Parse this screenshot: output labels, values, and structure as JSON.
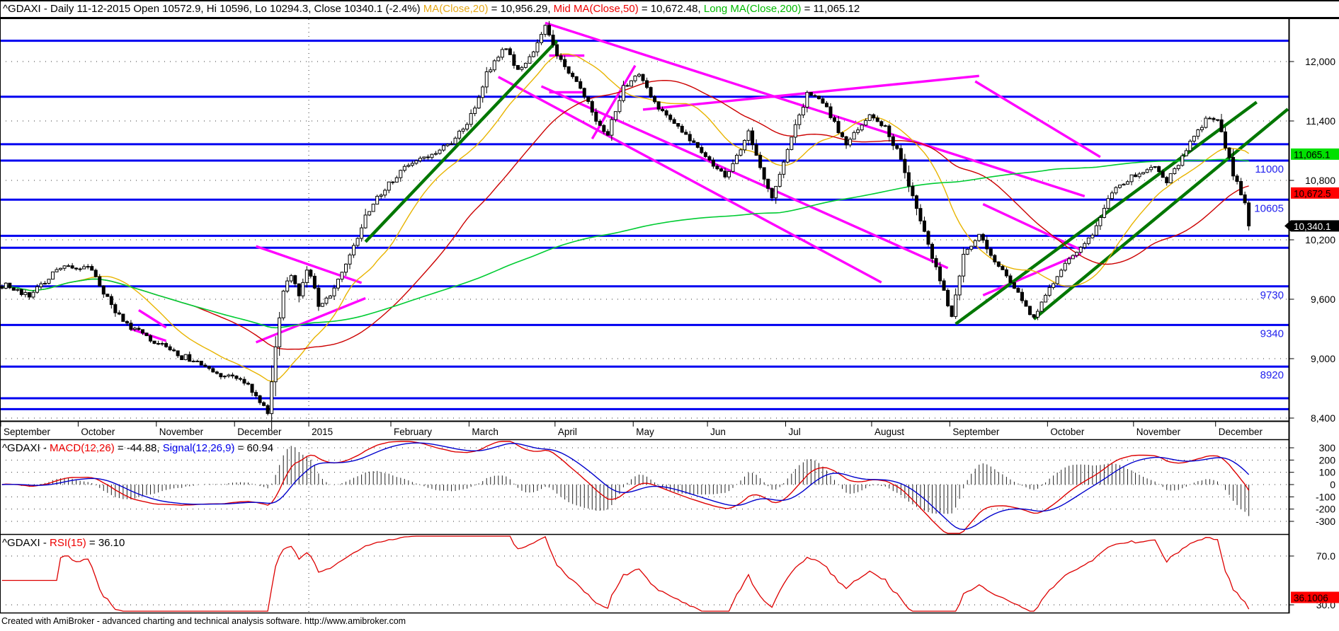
{
  "window": {
    "footer": "Created with AmiBroker - advanced charting and technical analysis software. http://www.amibroker.com"
  },
  "titles": {
    "main": [
      {
        "text": "^GDAXI - Daily 11-12-2015 Open 10572.9, Hi 10596, Lo 10294.3, Close 10340.1 (-2.4%) ",
        "color": "#000000"
      },
      {
        "text": "MA(Close,20)",
        "color": "#E6A817"
      },
      {
        "text": " = 10,956.29, ",
        "color": "#000000"
      },
      {
        "text": "Mid MA(Close,50)",
        "color": "#EE0000"
      },
      {
        "text": " = 10,672.48, ",
        "color": "#000000"
      },
      {
        "text": "Long MA(Close,200)",
        "color": "#00BB00"
      },
      {
        "text": " = 11,065.12",
        "color": "#000000"
      }
    ],
    "macd": [
      {
        "text": "^GDAXI - ",
        "color": "#000000"
      },
      {
        "text": "MACD(12,26)",
        "color": "#EE0000"
      },
      {
        "text": " = -44.88, ",
        "color": "#000000"
      },
      {
        "text": "Signal(12,26,9)",
        "color": "#0000EE"
      },
      {
        "text": " = 60.94",
        "color": "#000000"
      }
    ],
    "rsi": [
      {
        "text": "^GDAXI - ",
        "color": "#000000"
      },
      {
        "text": "RSI(15)",
        "color": "#EE0000"
      },
      {
        "text": " = 36.10",
        "color": "#000000"
      }
    ]
  },
  "chart_data": {
    "type": "candlestick",
    "symbol": "^GDAXI",
    "timeframe": "Daily",
    "last_date": "11-12-2015",
    "last_bar": {
      "open": 10572.9,
      "high": 10596,
      "low": 10294.3,
      "close": 10340.1,
      "change_pct": "-2.4%"
    },
    "indicator_values": {
      "ma20": 10956.29,
      "ma50": 10672.48,
      "ma200": 11065.12,
      "macd": -44.88,
      "signal": 60.94,
      "rsi": 36.1
    },
    "bars": 320,
    "price_axis": {
      "ticks": [
        12000,
        11400,
        10800,
        10200,
        9600,
        9000,
        8400
      ],
      "labels": [
        "12,000",
        "11,400",
        "10,800",
        "10,200",
        "9,600",
        "9,000",
        "8,400"
      ]
    },
    "x_axis": {
      "labels": [
        "September",
        "October",
        "November",
        "December",
        "2015",
        "February",
        "March",
        "April",
        "May",
        "Jun",
        "Jul",
        "August",
        "September",
        "October",
        "November",
        "December"
      ],
      "tick_bars": [
        0,
        20,
        40,
        60,
        79,
        100,
        120,
        142,
        162,
        181,
        201,
        223,
        243,
        268,
        290,
        311
      ],
      "year_vline_bar": 79
    },
    "hlines": [
      {
        "price": 12210,
        "label": ""
      },
      {
        "price": 11645,
        "label": ""
      },
      {
        "price": 11165,
        "label": ""
      },
      {
        "price": 11000,
        "label": "11000"
      },
      {
        "price": 10605,
        "label": "10605"
      },
      {
        "price": 10240,
        "label": ""
      },
      {
        "price": 10120,
        "label": ""
      },
      {
        "price": 9730,
        "label": "9730"
      },
      {
        "price": 9340,
        "label": "9340"
      },
      {
        "price": 8920,
        "label": "8920"
      },
      {
        "price": 8600,
        "label": ""
      },
      {
        "price": 8490,
        "label": ""
      }
    ],
    "price_anchors": [
      [
        0,
        9750
      ],
      [
        7,
        9640
      ],
      [
        14,
        9900
      ],
      [
        22,
        9940
      ],
      [
        31,
        9360
      ],
      [
        39,
        9160
      ],
      [
        46,
        9030
      ],
      [
        54,
        8860
      ],
      [
        62,
        8760
      ],
      [
        66,
        8580
      ],
      [
        68,
        8480
      ],
      [
        70,
        9120
      ],
      [
        72,
        9700
      ],
      [
        74,
        9850
      ],
      [
        76,
        9620
      ],
      [
        78,
        9900
      ],
      [
        80,
        9740
      ],
      [
        81,
        9500
      ],
      [
        83,
        9600
      ],
      [
        85,
        9700
      ],
      [
        88,
        9960
      ],
      [
        91,
        10200
      ],
      [
        93,
        10430
      ],
      [
        96,
        10620
      ],
      [
        100,
        10800
      ],
      [
        105,
        10980
      ],
      [
        110,
        11050
      ],
      [
        114,
        11160
      ],
      [
        118,
        11300
      ],
      [
        122,
        11600
      ],
      [
        124,
        11900
      ],
      [
        127,
        12050
      ],
      [
        129,
        12150
      ],
      [
        132,
        11900
      ],
      [
        136,
        12100
      ],
      [
        139,
        12370
      ],
      [
        141,
        12150
      ],
      [
        144,
        11950
      ],
      [
        147,
        11800
      ],
      [
        150,
        11600
      ],
      [
        152,
        11380
      ],
      [
        155,
        11270
      ],
      [
        159,
        11750
      ],
      [
        163,
        11850
      ],
      [
        168,
        11530
      ],
      [
        174,
        11300
      ],
      [
        179,
        11080
      ],
      [
        185,
        10830
      ],
      [
        191,
        11280
      ],
      [
        197,
        10600
      ],
      [
        201,
        11100
      ],
      [
        206,
        11680
      ],
      [
        210,
        11600
      ],
      [
        216,
        11170
      ],
      [
        222,
        11450
      ],
      [
        226,
        11350
      ],
      [
        230,
        11000
      ],
      [
        236,
        10300
      ],
      [
        239,
        9900
      ],
      [
        243,
        9400
      ],
      [
        246,
        10050
      ],
      [
        250,
        10250
      ],
      [
        254,
        10000
      ],
      [
        258,
        9750
      ],
      [
        264,
        9400
      ],
      [
        268,
        9700
      ],
      [
        272,
        9950
      ],
      [
        279,
        10250
      ],
      [
        284,
        10700
      ],
      [
        290,
        10850
      ],
      [
        294,
        10950
      ],
      [
        298,
        10800
      ],
      [
        303,
        11100
      ],
      [
        308,
        11430
      ],
      [
        311,
        11400
      ],
      [
        313,
        11150
      ],
      [
        315,
        10850
      ],
      [
        317,
        10690
      ],
      [
        318,
        10573
      ],
      [
        319,
        10340.1
      ]
    ],
    "trendlines_magenta": [
      [
        35,
        9490,
        42,
        9315
      ],
      [
        33,
        9300,
        42,
        9180
      ],
      [
        65,
        10135,
        92,
        9765
      ],
      [
        65,
        9165,
        93,
        9610
      ],
      [
        139,
        12390,
        277,
        10640
      ],
      [
        127,
        11845,
        225,
        9770
      ],
      [
        138,
        11750,
        242,
        9915
      ],
      [
        164,
        11515,
        250,
        11855
      ],
      [
        249,
        11800,
        281,
        11036
      ],
      [
        140,
        12060,
        149,
        12060
      ],
      [
        140,
        11690,
        149,
        11690
      ],
      [
        151,
        11220,
        162,
        11960
      ],
      [
        251,
        10560,
        276,
        10100
      ],
      [
        251,
        9640,
        276,
        10060
      ]
    ],
    "trendlines_green": [
      [
        93,
        10180,
        142,
        12210
      ],
      [
        244,
        9350,
        321,
        11590
      ],
      [
        264,
        9400,
        329,
        11520
      ]
    ],
    "badges": [
      {
        "text": "11,065.1",
        "bg": "#00E000",
        "fg": "#000000",
        "price": 11065.12,
        "arrow": false
      },
      {
        "text": "10,672.5",
        "bg": "#FF0000",
        "fg": "#000000",
        "price": 10672.48,
        "arrow": false
      },
      {
        "text": "10,340.1",
        "bg": "#000000",
        "fg": "#FFFFFF",
        "price": 10340.1,
        "arrow": true
      }
    ],
    "macd_panel": {
      "macd": -44.88,
      "signal": 60.94,
      "axis_ticks": [
        300,
        200,
        100,
        0,
        -100,
        -200,
        -300
      ]
    },
    "rsi_panel": {
      "period": 15,
      "value": 36.1,
      "axis_ticks": [
        "70.0",
        "30.0"
      ],
      "axis_values": [
        70,
        30
      ],
      "badge": {
        "text": "36.1006",
        "bg": "#FF0000",
        "fg": "#000000",
        "value": 36.1006
      }
    },
    "colors": {
      "hline_blue": "#0000F0",
      "hline_label_blue": "#2222EE",
      "grid_dot": "#333333",
      "candle_outline": "#000000",
      "candle_up_fill": "#FFFFFF",
      "candle_down_fill": "#000000",
      "ma20": "#E8B400",
      "ma50": "#CC0000",
      "ma200": "#00CC33",
      "trend_green": "#007700",
      "trend_magenta": "#FF00FF",
      "macd_line": "#DD0000",
      "signal_line": "#0000CC",
      "hist": "#222222",
      "rsi_line": "#DD0000",
      "axis_text": "#000000",
      "border": "#000000"
    },
    "seed": 7
  }
}
